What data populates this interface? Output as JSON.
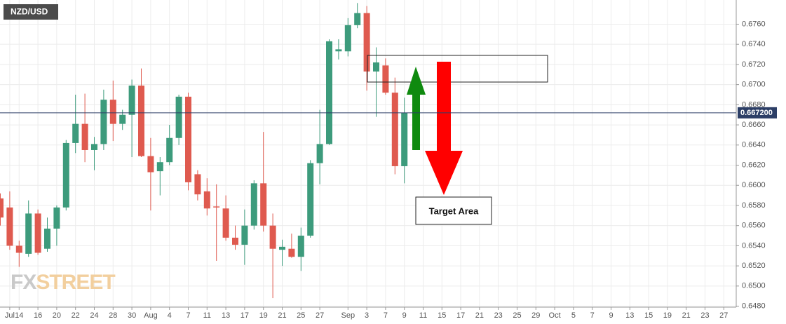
{
  "chart_data": {
    "type": "candlestick",
    "title": "NZD/USD",
    "categories": [
      null,
      "Jul",
      "14",
      null,
      "16",
      null,
      "20",
      null,
      "22",
      null,
      "24",
      null,
      "28",
      null,
      "30",
      null,
      "Aug",
      null,
      "4",
      null,
      "7",
      null,
      "11",
      null,
      "13",
      null,
      "17",
      null,
      "19",
      null,
      "21",
      null,
      "25",
      null,
      "27",
      null,
      null,
      "Sep",
      null,
      "3",
      null,
      "7",
      null,
      "9",
      null,
      "11",
      null,
      "15",
      null,
      "17",
      null,
      "21",
      null,
      "23",
      null,
      "25",
      null,
      "29",
      null,
      "Oct",
      null,
      "5",
      null,
      "7",
      null,
      "9",
      null,
      "13",
      null,
      "15",
      null,
      "19",
      null,
      "21",
      null,
      "23",
      null,
      "27"
    ],
    "open": [
      0.6587,
      0.6578,
      0.654,
      0.6532,
      0.6572,
      0.6537,
      0.6557,
      0.6578,
      0.6642,
      0.6661,
      0.6635,
      0.6641,
      0.6685,
      0.6661,
      0.667,
      0.6699,
      0.6629,
      0.6614,
      0.6623,
      0.6647,
      0.6688,
      0.6611,
      0.6594,
      0.6579,
      0.6577,
      0.6548,
      0.6541,
      0.656,
      0.6602,
      0.656,
      0.6536,
      0.6537,
      0.6529,
      0.655,
      0.6622,
      0.6641,
      0.6733,
      0.6733,
      0.6759,
      0.6771,
      0.6713,
      0.6719,
      0.6692,
      0.6619,
      null,
      null,
      null,
      null,
      null,
      null,
      null,
      null,
      null,
      null,
      null,
      null,
      null,
      null,
      null,
      null,
      null,
      null,
      null,
      null,
      null,
      null,
      null,
      null,
      null,
      null,
      null,
      null,
      null,
      null,
      null,
      null,
      null,
      null
    ],
    "high": [
      0.6592,
      0.6594,
      0.6545,
      0.6585,
      0.6576,
      0.6568,
      0.658,
      0.6645,
      0.669,
      0.6691,
      0.6648,
      0.6695,
      0.6704,
      0.6675,
      0.6705,
      0.6716,
      0.6647,
      0.6628,
      0.666,
      0.669,
      0.6692,
      0.6615,
      0.6607,
      0.6601,
      0.659,
      0.656,
      0.6576,
      0.6605,
      0.6653,
      0.6572,
      0.6546,
      0.6552,
      0.6558,
      0.6625,
      0.6675,
      0.6745,
      0.6745,
      0.6766,
      0.6781,
      0.6778,
      0.6737,
      0.6726,
      0.6707,
      0.6687,
      null,
      null,
      null,
      null,
      null,
      null,
      null,
      null,
      null,
      null,
      null,
      null,
      null,
      null,
      null,
      null,
      null,
      null,
      null,
      null,
      null,
      null,
      null,
      null,
      null,
      null,
      null,
      null,
      null,
      null,
      null,
      null,
      null,
      null
    ],
    "low": [
      0.656,
      0.6536,
      0.6519,
      0.6529,
      0.6531,
      0.6534,
      0.654,
      0.6575,
      0.6632,
      0.6623,
      0.6615,
      0.6635,
      0.6644,
      0.6655,
      0.6628,
      0.6628,
      0.6575,
      0.659,
      0.662,
      0.664,
      0.6595,
      0.6585,
      0.657,
      0.6525,
      0.6545,
      0.6536,
      0.6521,
      0.6556,
      0.6554,
      0.6488,
      0.652,
      0.6528,
      0.6515,
      0.6548,
      0.6601,
      0.664,
      0.6725,
      0.6728,
      0.6756,
      0.6694,
      0.6668,
      0.669,
      0.6611,
      0.6602,
      null,
      null,
      null,
      null,
      null,
      null,
      null,
      null,
      null,
      null,
      null,
      null,
      null,
      null,
      null,
      null,
      null,
      null,
      null,
      null,
      null,
      null,
      null,
      null,
      null,
      null,
      null,
      null,
      null,
      null,
      null,
      null,
      null,
      null
    ],
    "close": [
      0.6568,
      0.654,
      0.6533,
      0.6572,
      0.6533,
      0.6557,
      0.6578,
      0.6642,
      0.6661,
      0.6635,
      0.6641,
      0.6685,
      0.6661,
      0.667,
      0.6699,
      0.6629,
      0.6613,
      0.6623,
      0.6647,
      0.6688,
      0.6603,
      0.6591,
      0.6577,
      0.6578,
      0.6548,
      0.6541,
      0.656,
      0.6602,
      0.656,
      0.6537,
      0.6539,
      0.6529,
      0.655,
      0.6622,
      0.6641,
      0.6743,
      0.6735,
      0.6759,
      0.6771,
      0.6713,
      0.6722,
      0.6692,
      0.6619,
      0.6672,
      null,
      null,
      null,
      null,
      null,
      null,
      null,
      null,
      null,
      null,
      null,
      null,
      null,
      null,
      null,
      null,
      null,
      null,
      null,
      null,
      null,
      null,
      null,
      null,
      null,
      null,
      null,
      null,
      null,
      null,
      null,
      null,
      null,
      null
    ],
    "up_color": "#3d9b7c",
    "down_color": "#df5a4f",
    "ylim": [
      0.6479,
      0.6784
    ],
    "yticks": [
      {
        "value": 0.648,
        "label": "0.6480"
      },
      {
        "value": 0.65,
        "label": "0.6500"
      },
      {
        "value": 0.652,
        "label": "0.6520"
      },
      {
        "value": 0.654,
        "label": "0.6540"
      },
      {
        "value": 0.656,
        "label": "0.6560"
      },
      {
        "value": 0.658,
        "label": "0.6580"
      },
      {
        "value": 0.66,
        "label": "0.6600"
      },
      {
        "value": 0.662,
        "label": "0.6620"
      },
      {
        "value": 0.664,
        "label": "0.6640"
      },
      {
        "value": 0.666,
        "label": "0.6660"
      },
      {
        "value": 0.668,
        "label": "0.6680"
      },
      {
        "value": 0.67,
        "label": "0.6700"
      },
      {
        "value": 0.672,
        "label": "0.6720"
      },
      {
        "value": 0.674,
        "label": "0.6740"
      },
      {
        "value": 0.676,
        "label": "0.6760"
      }
    ],
    "grid": true,
    "current_price": 0.6672,
    "current_price_label": "0.667200",
    "annotation": "Target Area",
    "watermark": [
      "FX",
      "STREET"
    ]
  }
}
